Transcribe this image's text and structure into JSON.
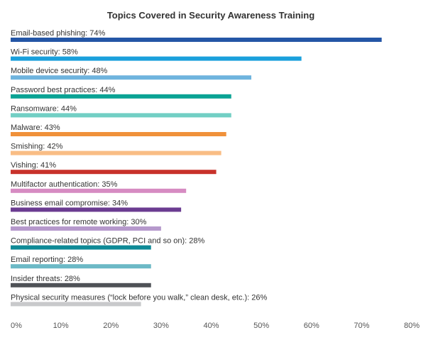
{
  "chart_data": {
    "type": "bar",
    "orientation": "horizontal",
    "title": "Topics Covered in Security Awareness Training",
    "xlabel": "",
    "ylabel": "",
    "xlim": [
      0,
      80
    ],
    "grid": false,
    "legend": "none",
    "categories": [
      "Email-based phishing",
      "Wi-Fi security",
      "Mobile device security",
      "Password best practices",
      "Ransomware",
      "Malware",
      "Smishing",
      "Vishing",
      "Multifactor authentication",
      "Business email compromise",
      "Best practices for remote working",
      "Compliance-related topics (GDPR, PCI and so on)",
      "Email reporting",
      "Insider threats",
      "Physical security measures (“lock before you walk,” clean desk, etc.)"
    ],
    "values": [
      74,
      58,
      48,
      44,
      44,
      43,
      42,
      41,
      35,
      34,
      30,
      28,
      28,
      28,
      26
    ],
    "labels": [
      "Email-based phishing: 74%",
      "Wi-Fi security: 58%",
      "Mobile device security: 48%",
      "Password best practices: 44%",
      "Ransomware: 44%",
      "Malware: 43%",
      "Smishing: 42%",
      "Vishing: 41%",
      "Multifactor authentication: 35%",
      "Business email compromise: 34%",
      "Best practices for remote working: 30%",
      "Compliance-related topics (GDPR, PCI and so on): 28%",
      "Email reporting: 28%",
      "Insider threats: 28%",
      "Physical security measures (“lock before you walk,” clean desk, etc.): 26%"
    ],
    "colors": [
      "#2456a6",
      "#1aa0dc",
      "#6fb4de",
      "#0aa394",
      "#72cfc4",
      "#f0913a",
      "#f9bd85",
      "#c8322b",
      "#d68bc2",
      "#6b3c91",
      "#b699cc",
      "#0e8a96",
      "#6cb9c6",
      "#4f5257",
      "#c8c9cb"
    ],
    "x_ticks": [
      0,
      10,
      20,
      30,
      40,
      50,
      60,
      70,
      80
    ],
    "x_tick_labels": [
      "0%",
      "10%",
      "20%",
      "30%",
      "40%",
      "50%",
      "60%",
      "70%",
      "80%"
    ]
  }
}
